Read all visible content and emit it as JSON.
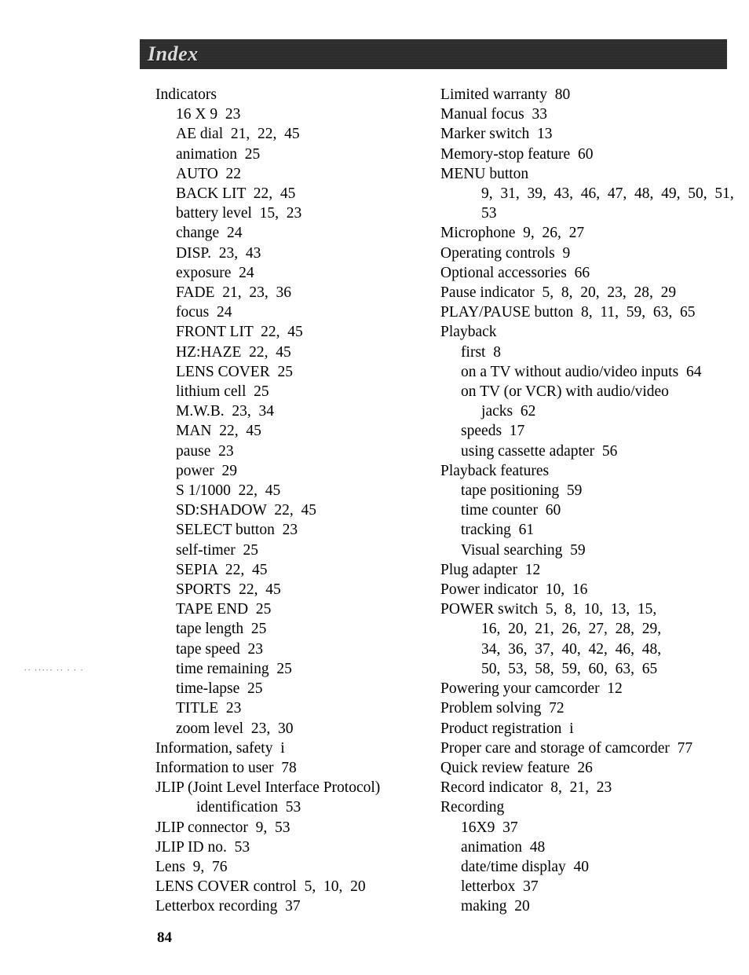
{
  "header": {
    "title": "Index"
  },
  "page_number": "84",
  "side_noise": "·· ·····  ·· ·  · ·",
  "colors": {
    "text": "#000000",
    "background": "#ffffff",
    "header_bg": "#2b2b2b",
    "header_text": "#d9d9d9"
  },
  "typography": {
    "body_font": "Times New Roman",
    "body_size_pt": 15,
    "header_size_pt": 20,
    "header_weight": "bold",
    "header_style": "italic"
  },
  "left_column": [
    {
      "text": "Indicators",
      "indent": 0
    },
    {
      "text": "16 X 9  23",
      "indent": 1
    },
    {
      "text": "AE dial  21,  22,  45",
      "indent": 1
    },
    {
      "text": "animation  25",
      "indent": 1
    },
    {
      "text": "AUTO  22",
      "indent": 1
    },
    {
      "text": "BACK LIT  22,  45",
      "indent": 1
    },
    {
      "text": "battery level  15,  23",
      "indent": 1
    },
    {
      "text": "change  24",
      "indent": 1
    },
    {
      "text": "DISP.  23,  43",
      "indent": 1
    },
    {
      "text": "exposure  24",
      "indent": 1
    },
    {
      "text": "FADE  21,  23,  36",
      "indent": 1
    },
    {
      "text": "focus  24",
      "indent": 1
    },
    {
      "text": "FRONT LIT  22,  45",
      "indent": 1
    },
    {
      "text": "HZ:HAZE  22,  45",
      "indent": 1
    },
    {
      "text": "LENS COVER  25",
      "indent": 1
    },
    {
      "text": "lithium cell  25",
      "indent": 1
    },
    {
      "text": "M.W.B.  23,  34",
      "indent": 1
    },
    {
      "text": "MAN  22,  45",
      "indent": 1
    },
    {
      "text": "pause  23",
      "indent": 1
    },
    {
      "text": "power  29",
      "indent": 1
    },
    {
      "text": "S 1/1000  22,  45",
      "indent": 1
    },
    {
      "text": "SD:SHADOW  22,  45",
      "indent": 1
    },
    {
      "text": "SELECT button  23",
      "indent": 1
    },
    {
      "text": "self-timer  25",
      "indent": 1
    },
    {
      "text": "SEPIA  22,  45",
      "indent": 1
    },
    {
      "text": "SPORTS  22,  45",
      "indent": 1
    },
    {
      "text": "TAPE END  25",
      "indent": 1
    },
    {
      "text": "tape length  25",
      "indent": 1
    },
    {
      "text": "tape speed  23",
      "indent": 1
    },
    {
      "text": "time remaining  25",
      "indent": 1
    },
    {
      "text": "time-lapse  25",
      "indent": 1
    },
    {
      "text": "TITLE  23",
      "indent": 1
    },
    {
      "text": "zoom level  23,  30",
      "indent": 1
    },
    {
      "text": "Information, safety  i",
      "indent": 0
    },
    {
      "text": "Information to user  78",
      "indent": 0
    },
    {
      "text": "JLIP (Joint Level Interface Protocol)",
      "indent": 0
    },
    {
      "text": "identification  53",
      "indent": 2
    },
    {
      "text": "JLIP connector  9,  53",
      "indent": 0
    },
    {
      "text": "JLIP ID no.  53",
      "indent": 0
    },
    {
      "text": "Lens  9,  76",
      "indent": 0
    },
    {
      "text": "LENS COVER control  5,  10,  20",
      "indent": 0
    },
    {
      "text": "Letterbox recording  37",
      "indent": 0
    }
  ],
  "right_column": [
    {
      "text": "Limited warranty  80",
      "indent": 0
    },
    {
      "text": "Manual focus  33",
      "indent": 0
    },
    {
      "text": "Marker switch  13",
      "indent": 0
    },
    {
      "text": "Memory-stop feature  60",
      "indent": 0
    },
    {
      "text": "MENU button",
      "indent": 0
    },
    {
      "text": "9,  31,  39,  43,  46,  47,  48,  49,  50,  51,  53",
      "indent": 2
    },
    {
      "text": "Microphone  9,  26,  27",
      "indent": 0
    },
    {
      "text": "Operating controls  9",
      "indent": 0
    },
    {
      "text": "Optional accessories  66",
      "indent": 0
    },
    {
      "text": "Pause indicator  5,  8,  20,  23,  28,  29",
      "indent": 0
    },
    {
      "text": "PLAY/PAUSE button  8,  11,  59,  63,  65",
      "indent": 0
    },
    {
      "text": "Playback",
      "indent": 0
    },
    {
      "text": "first  8",
      "indent": 1
    },
    {
      "text": "on a TV without audio/video inputs  64",
      "indent": 1
    },
    {
      "text": "on TV (or VCR) with audio/video",
      "indent": 1
    },
    {
      "text": "jacks  62",
      "indent": 2
    },
    {
      "text": "speeds  17",
      "indent": 1
    },
    {
      "text": "using cassette adapter  56",
      "indent": 1
    },
    {
      "text": "Playback features",
      "indent": 0
    },
    {
      "text": "tape positioning  59",
      "indent": 1
    },
    {
      "text": "time counter  60",
      "indent": 1
    },
    {
      "text": "tracking  61",
      "indent": 1
    },
    {
      "text": "Visual searching  59",
      "indent": 1
    },
    {
      "text": "Plug adapter  12",
      "indent": 0
    },
    {
      "text": "Power indicator  10,  16",
      "indent": 0
    },
    {
      "text": "POWER switch  5,  8,  10,  13,  15,",
      "indent": 0
    },
    {
      "text": "16,  20,  21,  26,  27,  28,  29,",
      "indent": 2
    },
    {
      "text": "34,  36,  37,  40,  42,  46,  48,",
      "indent": 2
    },
    {
      "text": "50,  53,  58,  59,  60,  63,  65",
      "indent": 2
    },
    {
      "text": "Powering your camcorder  12",
      "indent": 0
    },
    {
      "text": "Problem solving  72",
      "indent": 0
    },
    {
      "text": "Product registration  i",
      "indent": 0
    },
    {
      "text": "Proper care and storage of camcorder  77",
      "indent": 0
    },
    {
      "text": "Quick review feature  26",
      "indent": 0
    },
    {
      "text": "Record indicator  8,  21,  23",
      "indent": 0
    },
    {
      "text": "Recording",
      "indent": 0
    },
    {
      "text": "16X9  37",
      "indent": 1
    },
    {
      "text": "animation  48",
      "indent": 1
    },
    {
      "text": "date/time display  40",
      "indent": 1
    },
    {
      "text": "letterbox  37",
      "indent": 1
    },
    {
      "text": "making  20",
      "indent": 1
    }
  ]
}
